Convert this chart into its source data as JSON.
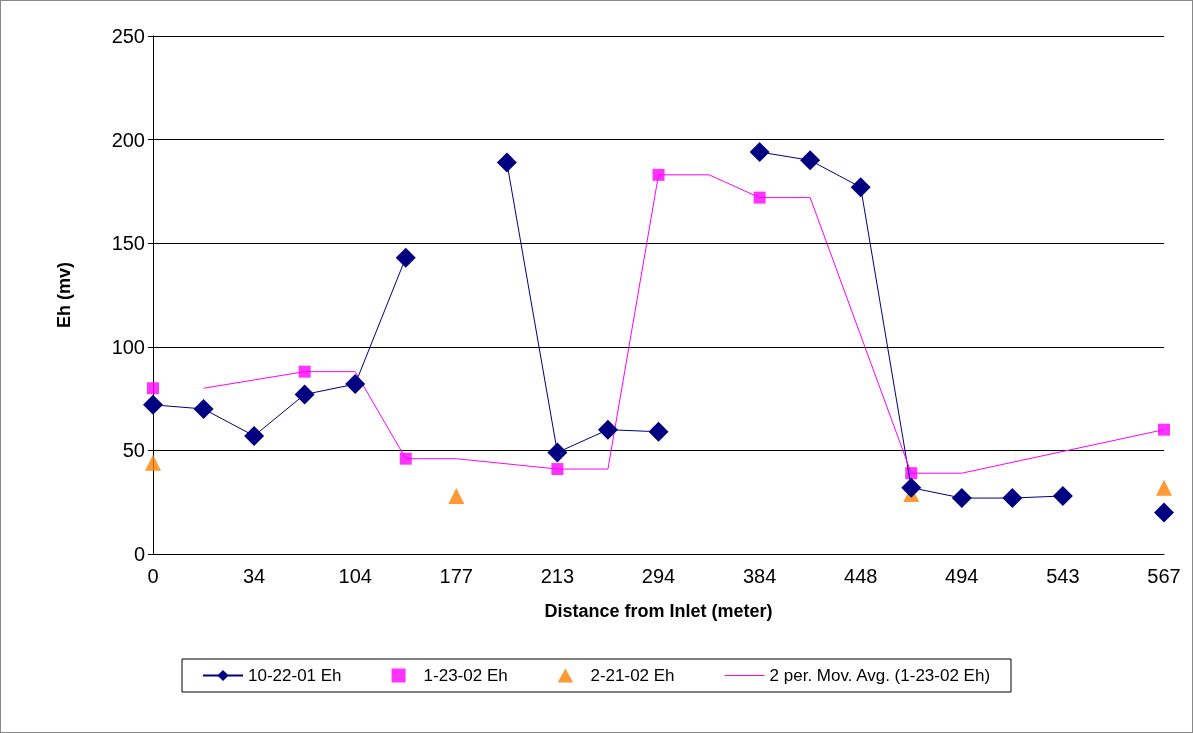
{
  "chart_data": {
    "type": "line",
    "xlabel": "Distance from Inlet (meter)",
    "ylabel": "Eh (mv)",
    "categories": [
      "0",
      null,
      "34",
      null,
      "104",
      null,
      "177",
      null,
      "213",
      null,
      "294",
      null,
      "384",
      null,
      "448",
      null,
      "494",
      null,
      "543",
      null,
      "567"
    ],
    "series": [
      {
        "name": "10-22-01 Eh",
        "color": "#000080",
        "marker": "diamond",
        "values": [
          72,
          70,
          57,
          77,
          82,
          143,
          null,
          189,
          49,
          60,
          59,
          null,
          194,
          190,
          177,
          32,
          27,
          27,
          28,
          null,
          20
        ]
      },
      {
        "name": "1-23-02 Eh",
        "type": "scatter",
        "color": "#ff00ff",
        "marker": "square",
        "values": [
          80,
          null,
          null,
          88,
          null,
          46,
          null,
          null,
          41,
          null,
          183,
          null,
          172,
          null,
          null,
          39,
          null,
          null,
          null,
          null,
          60
        ]
      },
      {
        "name": "2-21-02 Eh",
        "type": "scatter",
        "color": "#ff8000",
        "marker": "triangle",
        "values": [
          44,
          null,
          null,
          null,
          null,
          null,
          28,
          null,
          null,
          null,
          null,
          null,
          null,
          null,
          null,
          29,
          null,
          null,
          null,
          null,
          32
        ]
      },
      {
        "name": "2 per. Mov. Avg. (1-23-02 Eh)",
        "color": "#ff00ff",
        "marker": "none",
        "values": [
          null,
          80,
          null,
          88,
          88,
          46,
          46,
          null,
          41,
          41,
          183,
          183,
          172,
          172,
          null,
          39,
          39,
          null,
          null,
          null,
          60
        ]
      }
    ],
    "ylim": [
      0,
      250
    ],
    "yticks": [
      0,
      50,
      100,
      150,
      200,
      250
    ],
    "grid": "y",
    "legend": "bottom"
  }
}
